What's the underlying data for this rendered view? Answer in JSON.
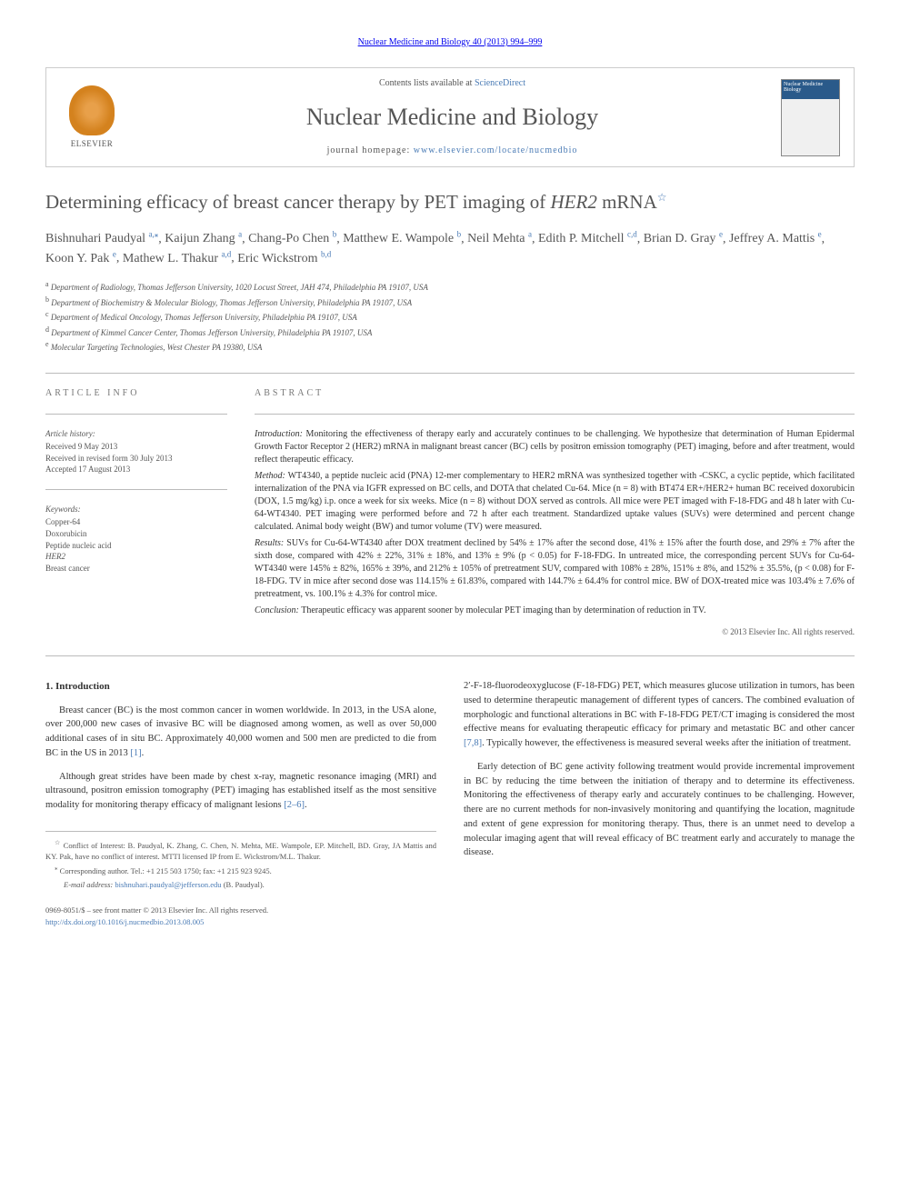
{
  "top_link": "Nuclear Medicine and Biology 40 (2013) 994–999",
  "header": {
    "elsevier_label": "ELSEVIER",
    "contents_prefix": "Contents lists available at ",
    "contents_link": "ScienceDirect",
    "journal_name": "Nuclear Medicine and Biology",
    "homepage_prefix": "journal homepage: ",
    "homepage_link": "www.elsevier.com/locate/nucmedbio",
    "cover_title": "Nuclear Medicine Biology"
  },
  "title": {
    "text": "Determining efficacy of breast cancer therapy by PET imaging of ",
    "italic": "HER2",
    "suffix": " mRNA",
    "star": "☆"
  },
  "authors": [
    {
      "name": "Bishnuhari Paudyal",
      "aff": "a,",
      "corr": "⁎"
    },
    {
      "name": "Kaijun Zhang",
      "aff": "a"
    },
    {
      "name": "Chang-Po Chen",
      "aff": "b"
    },
    {
      "name": "Matthew E. Wampole",
      "aff": "b"
    },
    {
      "name": "Neil Mehta",
      "aff": "a"
    },
    {
      "name": "Edith P. Mitchell",
      "aff": "c,d"
    },
    {
      "name": "Brian D. Gray",
      "aff": "e"
    },
    {
      "name": "Jeffrey A. Mattis",
      "aff": "e"
    },
    {
      "name": "Koon Y. Pak",
      "aff": "e"
    },
    {
      "name": "Mathew L. Thakur",
      "aff": "a,d"
    },
    {
      "name": "Eric Wickstrom",
      "aff": "b,d"
    }
  ],
  "affiliations": [
    {
      "sup": "a",
      "text": " Department of Radiology, Thomas Jefferson University, 1020 Locust Street, JAH 474, Philadelphia PA 19107, USA"
    },
    {
      "sup": "b",
      "text": " Department of Biochemistry & Molecular Biology, Thomas Jefferson University, Philadelphia PA 19107, USA"
    },
    {
      "sup": "c",
      "text": " Department of Medical Oncology, Thomas Jefferson University, Philadelphia PA 19107, USA"
    },
    {
      "sup": "d",
      "text": " Department of Kimmel Cancer Center, Thomas Jefferson University, Philadelphia PA 19107, USA"
    },
    {
      "sup": "e",
      "text": " Molecular Targeting Technologies, West Chester PA 19380, USA"
    }
  ],
  "article_info": {
    "heading": "ARTICLE INFO",
    "history_label": "Article history:",
    "received": "Received 9 May 2013",
    "revised": "Received in revised form 30 July 2013",
    "accepted": "Accepted 17 August 2013",
    "keywords_label": "Keywords:",
    "keywords": [
      "Copper-64",
      "Doxorubicin",
      "Peptide nucleic acid",
      "HER2",
      "Breast cancer"
    ]
  },
  "abstract": {
    "heading": "ABSTRACT",
    "intro_label": "Introduction:",
    "intro": " Monitoring the effectiveness of therapy early and accurately continues to be challenging. We hypothesize that determination of Human Epidermal Growth Factor Receptor 2 (HER2) mRNA in malignant breast cancer (BC) cells by positron emission tomography (PET) imaging, before and after treatment, would reflect therapeutic efficacy.",
    "method_label": "Method:",
    "method": " WT4340, a peptide nucleic acid (PNA) 12-mer complementary to HER2 mRNA was synthesized together with -CSKC, a cyclic peptide, which facilitated internalization of the PNA via IGFR expressed on BC cells, and DOTA that chelated Cu-64. Mice (n = 8) with BT474 ER+/HER2+ human BC received doxorubicin (DOX, 1.5 mg/kg) i.p. once a week for six weeks. Mice (n = 8) without DOX served as controls. All mice were PET imaged with F-18-FDG and 48 h later with Cu-64-WT4340. PET imaging were performed before and 72 h after each treatment. Standardized uptake values (SUVs) were determined and percent change calculated. Animal body weight (BW) and tumor volume (TV) were measured.",
    "results_label": "Results:",
    "results": " SUVs for Cu-64-WT4340 after DOX treatment declined by 54% ± 17% after the second dose, 41% ± 15% after the fourth dose, and 29% ± 7% after the sixth dose, compared with 42% ± 22%, 31% ± 18%, and 13% ± 9% (p < 0.05) for F-18-FDG. In untreated mice, the corresponding percent SUVs for Cu-64-WT4340 were 145% ± 82%, 165% ± 39%, and 212% ± 105% of pretreatment SUV, compared with 108% ± 28%, 151% ± 8%, and 152% ± 35.5%, (p < 0.08) for F-18-FDG. TV in mice after second dose was 114.15% ± 61.83%, compared with 144.7% ± 64.4% for control mice. BW of DOX-treated mice was 103.4% ± 7.6% of pretreatment, vs. 100.1% ± 4.3% for control mice.",
    "conclusion_label": "Conclusion:",
    "conclusion": " Therapeutic efficacy was apparent sooner by molecular PET imaging than by determination of reduction in TV.",
    "copyright": "© 2013 Elsevier Inc. All rights reserved."
  },
  "body": {
    "section1_heading": "1. Introduction",
    "col1_p1": "Breast cancer (BC) is the most common cancer in women worldwide. In 2013, in the USA alone, over 200,000 new cases of invasive BC will be diagnosed among women, as well as over 50,000 additional cases of in situ BC. Approximately 40,000 women and 500 men are predicted to die from BC in the US in 2013 ",
    "col1_p1_ref": "[1]",
    "col1_p1_end": ".",
    "col1_p2": "Although great strides have been made by chest x-ray, magnetic resonance imaging (MRI) and ultrasound, positron emission tomography (PET) imaging has established itself as the most sensitive modality for monitoring therapy efficacy of malignant lesions ",
    "col1_p2_ref": "[2–6]",
    "col1_p2_end": ".",
    "col2_p1_start": "2′-F-18-fluorodeoxyglucose (F-18-FDG) PET, which measures glucose utilization in tumors, has been used to determine therapeutic management of different types of cancers. The combined evaluation of morphologic and functional alterations in BC with F-18-FDG PET/CT imaging is considered the most effective means for evaluating therapeutic efficacy for primary and metastatic BC and other cancer ",
    "col2_p1_ref": "[7,8]",
    "col2_p1_end": ". Typically however, the effectiveness is measured several weeks after the initiation of treatment.",
    "col2_p2": "Early detection of BC gene activity following treatment would provide incremental improvement in BC by reducing the time between the initiation of therapy and to determine its effectiveness. Monitoring the effectiveness of therapy early and accurately continues to be challenging. However, there are no current methods for non-invasively monitoring and quantifying the location, magnitude and extent of gene expression for monitoring therapy. Thus, there is an unmet need to develop a molecular imaging agent that will reveal efficacy of BC treatment early and accurately to manage the disease."
  },
  "footnotes": {
    "conflict_star": "☆",
    "conflict": " Conflict of Interest: B. Paudyal, K. Zhang, C. Chen, N. Mehta, ME. Wampole, EP. Mitchell, BD. Gray, JA Mattis and KY. Pak, have no conflict of interest. MTTI licensed IP from E. Wickstrom/M.L. Thakur.",
    "corr_star": "⁎",
    "corr": " Corresponding author. Tel.: +1 215 503 1750; fax: +1 215 923 9245.",
    "email_label": "E-mail address: ",
    "email": "bishnuhari.paudyal@jefferson.edu",
    "email_suffix": " (B. Paudyal)."
  },
  "footer": {
    "line1": "0969-8051/$ – see front matter © 2013 Elsevier Inc. All rights reserved.",
    "doi": "http://dx.doi.org/10.1016/j.nucmedbio.2013.08.005"
  },
  "colors": {
    "link": "#4a7bb5",
    "text": "#333333",
    "text_light": "#555555",
    "border": "#bbbbbb"
  }
}
